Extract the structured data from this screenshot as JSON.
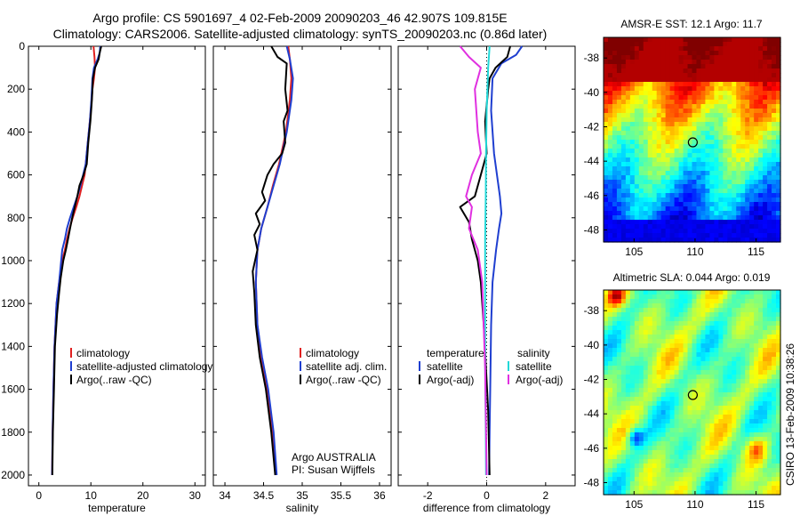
{
  "figure": {
    "title_line1": "Argo profile: CS 5901697_4 02-Feb-2009 20090203_46 42.907S 109.815E",
    "title_line2": "Climatology: CARS2006. Satellite-adjusted climatology: synTS_20090203.nc (0.86d later)",
    "credit": "CSIRO 13-Feb-2009 10:38:26",
    "annotation_country": "Argo AUSTRALIA",
    "annotation_pi": "PI: Susan Wijffels"
  },
  "colors": {
    "climatology": "#e02020",
    "satellite": "#1f3fd0",
    "argo": "#000000",
    "salinity_satellite": "#22d8d8",
    "salinity_argo": "#e030e0"
  },
  "chart_data": [
    {
      "type": "line",
      "id": "temperature",
      "xlabel": "temperature",
      "ylabel": "",
      "xlim": [
        -2,
        32
      ],
      "ylim": [
        2050,
        0
      ],
      "xticks": [
        0,
        10,
        20,
        30
      ],
      "xtick_labels": [
        "0",
        "10",
        "20",
        "30"
      ],
      "yticks": [
        0,
        200,
        400,
        600,
        800,
        1000,
        1200,
        1400,
        1600,
        1800,
        2000
      ],
      "ytick_labels": [
        "0",
        "200",
        "400",
        "600",
        "800",
        "1000",
        "1200",
        "1400",
        "1600",
        "1800",
        "2000"
      ],
      "legend": [
        "climatology",
        "satellite-adjusted climatology",
        "Argo(..raw -QC)"
      ],
      "legend_position": "lower-right",
      "series": [
        {
          "name": "climatology",
          "color_key": "climatology",
          "width": 2,
          "x": [
            10.5,
            10.7,
            10.8,
            10.6,
            10.3,
            10.0,
            9.6,
            9.2,
            8.8,
            8.3,
            7.8,
            7.2,
            6.5,
            5.9,
            5.4,
            5.0,
            4.5,
            3.9,
            3.4,
            3.0,
            2.8,
            2.65,
            2.55
          ],
          "y": [
            0,
            50,
            100,
            150,
            200,
            300,
            400,
            500,
            600,
            650,
            700,
            750,
            800,
            850,
            900,
            950,
            1000,
            1100,
            1200,
            1400,
            1600,
            1800,
            2000
          ]
        },
        {
          "name": "satellite-adjusted climatology",
          "color_key": "satellite",
          "width": 2,
          "x": [
            11.8,
            11.7,
            11.3,
            10.6,
            10.3,
            10.1,
            9.8,
            9.4,
            9.0,
            8.5,
            8.0,
            7.4,
            6.7,
            6.0,
            5.4,
            5.0,
            4.5,
            3.9,
            3.4,
            3.0,
            2.8,
            2.65,
            2.55
          ],
          "y": [
            0,
            30,
            60,
            100,
            150,
            250,
            350,
            450,
            550,
            600,
            650,
            700,
            750,
            800,
            850,
            900,
            950,
            1100,
            1200,
            1400,
            1600,
            1800,
            2000
          ]
        },
        {
          "name": "Argo(..raw -QC)",
          "color_key": "argo",
          "width": 2,
          "x": [
            12.0,
            11.7,
            11.5,
            10.8,
            10.4,
            10.2,
            9.9,
            9.5,
            9.2,
            8.6,
            7.8,
            7.4,
            6.9,
            6.4,
            6.0,
            5.6,
            5.2,
            4.7,
            4.2,
            3.9,
            3.5,
            3.1,
            2.9,
            2.7,
            2.6
          ],
          "y": [
            0,
            30,
            60,
            100,
            150,
            250,
            350,
            450,
            550,
            600,
            650,
            700,
            750,
            800,
            850,
            900,
            950,
            1000,
            1080,
            1150,
            1250,
            1400,
            1600,
            1800,
            2000
          ]
        }
      ]
    },
    {
      "type": "line",
      "id": "salinity",
      "xlabel": "salinity",
      "ylabel": "",
      "xlim": [
        33.85,
        36.15
      ],
      "ylim": [
        2050,
        0
      ],
      "xticks": [
        34,
        34.5,
        35,
        35.5,
        36
      ],
      "xtick_labels": [
        "34",
        "34.5",
        "35",
        "35.5",
        "36"
      ],
      "legend": [
        "climatology",
        "satellite adj. clim.",
        "Argo(..raw -QC)"
      ],
      "legend_position": "lower-right",
      "series": [
        {
          "name": "climatology",
          "color_key": "climatology",
          "width": 2,
          "x": [
            34.82,
            34.84,
            34.86,
            34.84,
            34.79,
            34.7,
            34.62,
            34.55,
            34.47,
            34.42,
            34.4,
            34.42,
            34.47,
            34.55,
            34.62,
            34.66
          ],
          "y": [
            0,
            60,
            150,
            250,
            400,
            550,
            650,
            750,
            850,
            950,
            1100,
            1300,
            1450,
            1600,
            1800,
            2000
          ]
        },
        {
          "name": "satellite adj. clim.",
          "color_key": "satellite",
          "width": 2,
          "x": [
            34.8,
            34.84,
            34.88,
            34.86,
            34.8,
            34.71,
            34.63,
            34.55,
            34.47,
            34.42,
            34.4,
            34.42,
            34.48,
            34.56,
            34.63,
            34.67
          ],
          "y": [
            0,
            60,
            150,
            250,
            400,
            550,
            650,
            750,
            850,
            950,
            1100,
            1300,
            1450,
            1600,
            1800,
            2000
          ]
        },
        {
          "name": "Argo(..raw -QC)",
          "color_key": "argo",
          "width": 2,
          "x": [
            34.6,
            34.68,
            34.8,
            34.78,
            34.81,
            34.76,
            34.78,
            34.74,
            34.63,
            34.55,
            34.48,
            34.52,
            34.4,
            34.45,
            34.38,
            34.42,
            34.36,
            34.38,
            34.4,
            34.45,
            34.53,
            34.6,
            34.65
          ],
          "y": [
            0,
            50,
            80,
            200,
            300,
            350,
            450,
            500,
            550,
            600,
            680,
            720,
            780,
            830,
            880,
            950,
            1050,
            1150,
            1300,
            1450,
            1600,
            1800,
            2000
          ]
        }
      ]
    },
    {
      "type": "line",
      "id": "difference",
      "xlabel": "difference from climatology",
      "ylabel": "",
      "xlim": [
        -3.0,
        3.0
      ],
      "ylim": [
        2050,
        0
      ],
      "xticks": [
        -2,
        0,
        2
      ],
      "xtick_labels": [
        "-2",
        "0",
        "2"
      ],
      "legend_left_title": "temperature",
      "legend_right_title": "salinity",
      "legend": [
        "satellite",
        "Argo(-adj)",
        "satellite",
        "Argo(-adj)"
      ],
      "legend_position": "lower-center",
      "series": [
        {
          "name": "satellite",
          "color_key": "satellite",
          "width": 2,
          "x": [
            1.2,
            1.0,
            0.5,
            0.2,
            0.15,
            0.25,
            0.35,
            0.45,
            0.5,
            0.42,
            0.32,
            0.2,
            0.15,
            0.12,
            0.1,
            0.08
          ],
          "y": [
            0,
            40,
            80,
            150,
            300,
            500,
            600,
            700,
            780,
            850,
            950,
            1100,
            1300,
            1600,
            1800,
            2000
          ]
        },
        {
          "name": "Argo(-adj)",
          "color_key": "argo",
          "width": 2,
          "x": [
            0.8,
            0.7,
            0.3,
            0.1,
            0.05,
            -0.05,
            0.0,
            -0.2,
            -0.4,
            -0.9,
            -0.6,
            -0.5,
            -0.3,
            -0.2,
            -0.1,
            0.05,
            0.1
          ],
          "y": [
            0,
            50,
            100,
            150,
            200,
            350,
            500,
            600,
            700,
            750,
            820,
            900,
            1000,
            1100,
            1300,
            1700,
            2000
          ]
        },
        {
          "name": "satellite",
          "color_key": "salinity_satellite",
          "width": 2,
          "x": [
            0.1,
            0.05,
            0.0,
            -0.02,
            -0.03,
            -0.05,
            -0.05,
            -0.05,
            -0.03,
            -0.02
          ],
          "y": [
            0,
            100,
            300,
            500,
            700,
            900,
            1100,
            1500,
            1800,
            2000
          ]
        },
        {
          "name": "Argo(-adj)",
          "color_key": "salinity_argo",
          "width": 2,
          "x": [
            -0.9,
            -0.6,
            -0.2,
            -0.4,
            -0.3,
            -0.2,
            -0.5,
            -0.7,
            -0.5,
            -0.6,
            -0.3,
            -0.15,
            -0.05,
            0.0
          ],
          "y": [
            0,
            50,
            100,
            200,
            400,
            500,
            600,
            700,
            750,
            850,
            950,
            1100,
            1500,
            2000
          ]
        }
      ]
    },
    {
      "type": "heatmap",
      "id": "amsr-sst",
      "title": "AMSR-E SST: 12.1  Argo: 11.7",
      "xlim": [
        102.5,
        117
      ],
      "ylim": [
        -48.7,
        -36.8
      ],
      "xticks": [
        105,
        110,
        115
      ],
      "xtick_labels": [
        "105",
        "110",
        "115"
      ],
      "yticks": [
        -38,
        -40,
        -42,
        -44,
        -46,
        -48
      ],
      "ytick_labels": [
        "-38",
        "-40",
        "-42",
        "-44",
        "-46",
        "-48"
      ],
      "marker": {
        "x": 109.815,
        "y": -42.907
      },
      "colormap": "jet"
    },
    {
      "type": "heatmap",
      "id": "altimetric-sla",
      "title": "Altimetric SLA: 0.044  Argo: 0.019",
      "xlim": [
        102.5,
        117
      ],
      "ylim": [
        -48.7,
        -36.8
      ],
      "xticks": [
        105,
        110,
        115
      ],
      "xtick_labels": [
        "105",
        "110",
        "115"
      ],
      "yticks": [
        -38,
        -40,
        -42,
        -44,
        -46,
        -48
      ],
      "ytick_labels": [
        "-38",
        "-40",
        "-42",
        "-44",
        "-46",
        "-48"
      ],
      "marker": {
        "x": 109.815,
        "y": -42.907
      },
      "colormap": "jet"
    }
  ]
}
